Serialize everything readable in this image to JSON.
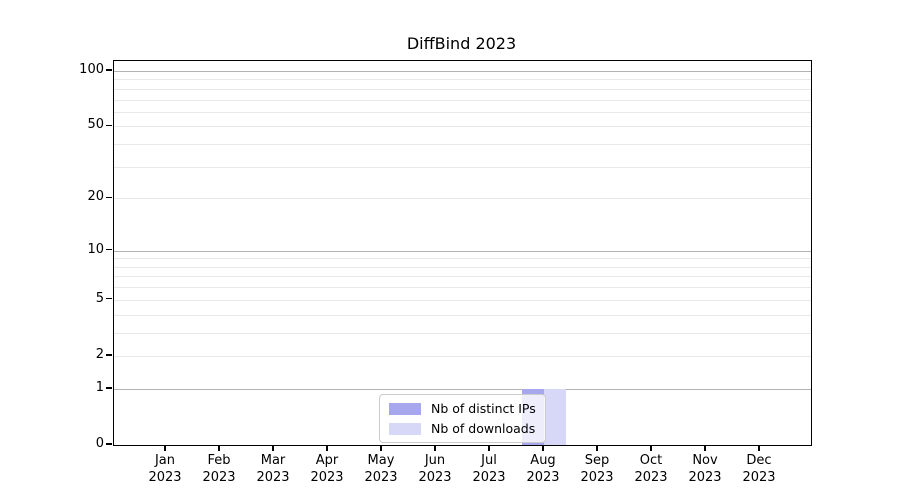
{
  "chart_data": {
    "type": "bar",
    "title": "DiffBind 2023",
    "categories": [
      "Jan 2023",
      "Feb 2023",
      "Mar 2023",
      "Apr 2023",
      "May 2023",
      "Jun 2023",
      "Jul 2023",
      "Aug 2023",
      "Sep 2023",
      "Oct 2023",
      "Nov 2023",
      "Dec 2023"
    ],
    "series": [
      {
        "name": "Nb of distinct IPs",
        "color": "#a7a7ee",
        "values": [
          0,
          0,
          0,
          0,
          0,
          0,
          0,
          1,
          0,
          0,
          0,
          0
        ]
      },
      {
        "name": "Nb of downloads",
        "color": "#d7d7f7",
        "values": [
          0,
          0,
          0,
          0,
          0,
          0,
          0,
          1,
          0,
          0,
          0,
          0
        ]
      }
    ],
    "yticks": [
      0,
      1,
      2,
      5,
      10,
      20,
      50,
      100
    ],
    "minor_grid_values": [
      2,
      3,
      4,
      5,
      6,
      7,
      8,
      9,
      20,
      30,
      40,
      50,
      60,
      70,
      80,
      90
    ],
    "major_grid_values": [
      1,
      10,
      100
    ],
    "yscale": "log10(value+1)",
    "ylim": [
      0,
      115
    ],
    "grid": "horizontal",
    "legend_position": "lower-center-inside",
    "colors": {
      "major_grid": "#b2b2b2",
      "minor_grid": "#e8e8e8",
      "axis": "#000000",
      "background": "#ffffff"
    }
  }
}
